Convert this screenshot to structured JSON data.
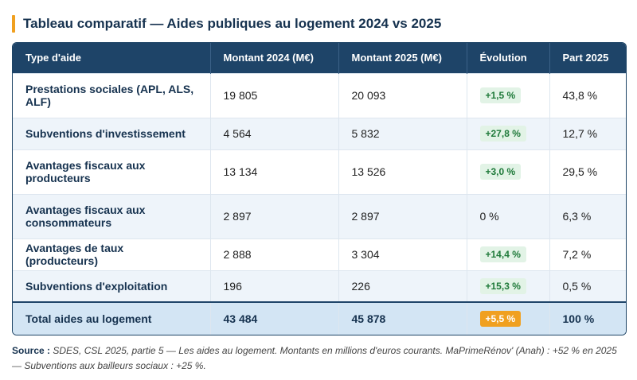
{
  "title": "Tableau comparatif — Aides publiques au logement 2024 vs 2025",
  "accent_color": "#f0a020",
  "header_color": "#1e4468",
  "columns": [
    "Type d'aide",
    "Montant 2024 (M€)",
    "Montant 2025 (M€)",
    "Évolution",
    "Part 2025"
  ],
  "rows": [
    {
      "type": "Prestations sociales (APL, ALS, ALF)",
      "m2024": "19 805",
      "m2025": "20 093",
      "evolution": "+1,5 %",
      "part": "43,8 %"
    },
    {
      "type": "Subventions d'investissement",
      "m2024": "4 564",
      "m2025": "5 832",
      "evolution": "+27,8 %",
      "part": "12,7 %"
    },
    {
      "type": "Avantages fiscaux aux producteurs",
      "m2024": "13 134",
      "m2025": "13 526",
      "evolution": "+3,0 %",
      "part": "29,5 %"
    },
    {
      "type": "Avantages fiscaux aux consommateurs",
      "m2024": "2 897",
      "m2025": "2 897",
      "evolution": "0 %",
      "part": "6,3 %"
    },
    {
      "type": "Avantages de taux (producteurs)",
      "m2024": "2 888",
      "m2025": "3 304",
      "evolution": "+14,4 %",
      "part": "7,2 %"
    },
    {
      "type": "Subventions d'exploitation",
      "m2024": "196",
      "m2025": "226",
      "evolution": "+15,3 %",
      "part": "0,5 %"
    }
  ],
  "total": {
    "type": "Total aides au logement",
    "m2024": "43 484",
    "m2025": "45 878",
    "evolution": "+5,5 %",
    "part": "100 %"
  },
  "source": {
    "label": "Source :",
    "text": "SDES, CSL 2025, partie 5 — Les aides au logement. Montants en millions d'euros courants. MaPrimeRénov' (Anah) : +52 % en 2025 — Subventions aux bailleurs sociaux : +25 %."
  }
}
